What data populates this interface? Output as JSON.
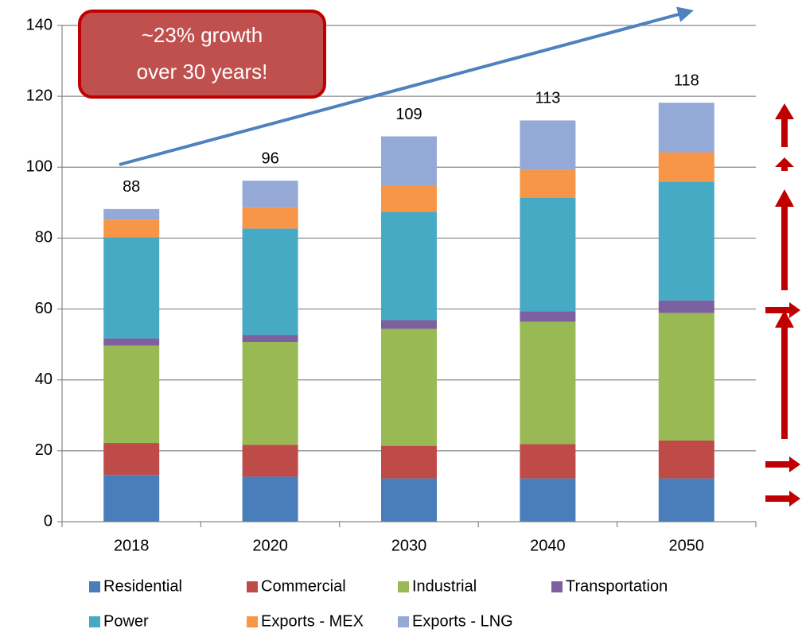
{
  "chart_data": {
    "type": "stacked_bar",
    "categories": [
      "2018",
      "2020",
      "2030",
      "2040",
      "2050"
    ],
    "series": [
      {
        "name": "Residential",
        "color": "#4a7ebb",
        "values": [
          13.2,
          12.7,
          12.2,
          12.2,
          12.2
        ]
      },
      {
        "name": "Commercial",
        "color": "#be4b48",
        "values": [
          9,
          9,
          9.2,
          9.7,
          10.7
        ]
      },
      {
        "name": "Industrial",
        "color": "#98b954",
        "values": [
          27.5,
          29,
          33,
          34.5,
          36
        ]
      },
      {
        "name": "Transportation",
        "color": "#7d60a0",
        "values": [
          2,
          2,
          2.5,
          3,
          3.5
        ]
      },
      {
        "name": "Power",
        "color": "#46aac5",
        "values": [
          28.5,
          30,
          30.5,
          32,
          33.5
        ]
      },
      {
        "name": "Exports - MEX",
        "color": "#f79646",
        "values": [
          5,
          6,
          7.3,
          7.8,
          8.3
        ]
      },
      {
        "name": "Exports - LNG",
        "color": "#95a9d6",
        "values": [
          3,
          7.5,
          14,
          14,
          14
        ]
      }
    ],
    "totals": [
      88,
      96,
      109,
      113,
      118
    ],
    "annotation": [
      "~23% growth",
      "over 30 years!"
    ],
    "ylim": [
      0,
      140
    ],
    "yticks": [
      0,
      20,
      40,
      60,
      80,
      100,
      120,
      140
    ],
    "grid": true
  }
}
